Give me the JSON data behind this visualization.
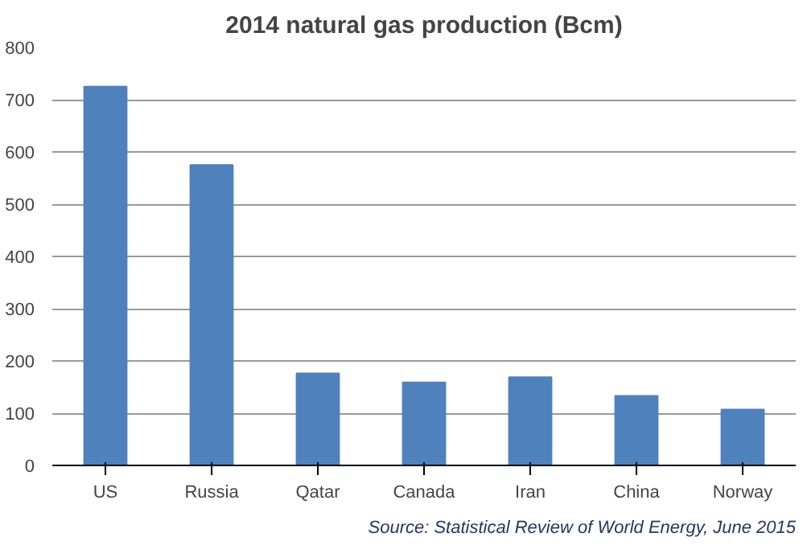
{
  "chart_data": {
    "type": "bar",
    "title": "2014 natural gas production (Bcm)",
    "categories": [
      "US",
      "Russia",
      "Qatar",
      "Canada",
      "Iran",
      "China",
      "Norway"
    ],
    "values": [
      725,
      575,
      176,
      159,
      169,
      133,
      107
    ],
    "color": "#4f81bd",
    "ylim": [
      0,
      800
    ],
    "yticks": [
      0,
      100,
      200,
      300,
      400,
      500,
      600,
      700,
      800
    ],
    "grid": "y",
    "annotations": [
      "Source: Statistical Review of World Energy, June 2015"
    ]
  }
}
